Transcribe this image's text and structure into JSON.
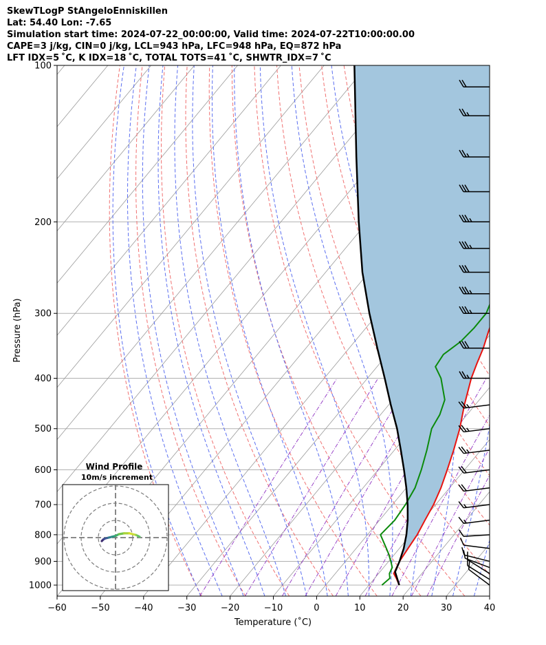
{
  "header": {
    "lines": [
      "SkewTLogP StAngeloEnniskillen",
      "Lat: 54.40   Lon: -7.65",
      "Simulation start time: 2024-07-22_00:00:00, Valid time: 2024-07-22T10:00:00.00",
      "CAPE=3 j/kg, CIN=0 j/kg, LCL=943 hPa, LFC=948 hPa, EQ=872 hPa",
      "LFT IDX=5 ˚C, K IDX=18 ˚C, TOTAL TOTS=41 ˚C, SHWTR_IDX=7 ˚C"
    ]
  },
  "chart_data": {
    "type": "line",
    "title": "SkewTLogP StAngeloEnniskillen",
    "xlabel": "Temperature (˚C)",
    "ylabel": "Pressure (hPa)",
    "xlim": [
      -60,
      40
    ],
    "ylim": [
      1050,
      100
    ],
    "y_scale": "log",
    "x_ticks": [
      -60,
      -50,
      -40,
      -30,
      -20,
      -10,
      0,
      10,
      20,
      30,
      40
    ],
    "x_tick_labels": [
      "−60",
      "−50",
      "−40",
      "−30",
      "−20",
      "−10",
      "0",
      "10",
      "20",
      "30",
      "40"
    ],
    "y_ticks": [
      1000,
      900,
      800,
      700,
      600,
      500,
      400,
      300,
      200,
      100
    ],
    "y_tick_labels": [
      "1000",
      "900",
      "800",
      "700",
      "600",
      "500",
      "400",
      "300",
      "200",
      "100"
    ],
    "grid": true,
    "cape_fill_color": "#a3c6de",
    "series": [
      {
        "role": "temperature",
        "color": "#e8130f",
        "points": [
          [
            1000,
            17
          ],
          [
            970,
            15
          ],
          [
            950,
            13.5
          ],
          [
            925,
            13
          ],
          [
            900,
            12.5
          ],
          [
            850,
            12
          ],
          [
            800,
            11.5
          ],
          [
            750,
            10.5
          ],
          [
            700,
            9.5
          ],
          [
            650,
            8
          ],
          [
            600,
            6
          ],
          [
            550,
            3.7
          ],
          [
            500,
            1
          ],
          [
            450,
            -2.5
          ],
          [
            400,
            -6
          ],
          [
            375,
            -7.5
          ],
          [
            350,
            -9
          ],
          [
            325,
            -11
          ],
          [
            300,
            -13
          ],
          [
            275,
            -15.5
          ],
          [
            260,
            -15.5
          ],
          [
            250,
            -15
          ],
          [
            240,
            -13.5
          ],
          [
            230,
            -11
          ],
          [
            220,
            -8
          ],
          [
            210,
            -5.5
          ],
          [
            200,
            -3
          ],
          [
            190,
            -0.5
          ],
          [
            180,
            2
          ],
          [
            170,
            4.5
          ],
          [
            160,
            7
          ],
          [
            150,
            8.5
          ],
          [
            140,
            10
          ],
          [
            130,
            11
          ],
          [
            120,
            12.5
          ],
          [
            110,
            13.5
          ],
          [
            100,
            15
          ]
        ]
      },
      {
        "role": "dewpoint",
        "color": "#0b8a0b",
        "points": [
          [
            1000,
            13
          ],
          [
            970,
            13.5
          ],
          [
            950,
            12.5
          ],
          [
            925,
            12
          ],
          [
            900,
            10.5
          ],
          [
            870,
            8.5
          ],
          [
            850,
            7
          ],
          [
            800,
            3
          ],
          [
            750,
            3.5
          ],
          [
            700,
            3
          ],
          [
            650,
            2
          ],
          [
            600,
            0
          ],
          [
            550,
            -2.5
          ],
          [
            500,
            -5.5
          ],
          [
            470,
            -6.3
          ],
          [
            440,
            -8
          ],
          [
            400,
            -13
          ],
          [
            380,
            -16.5
          ],
          [
            360,
            -17
          ],
          [
            340,
            -15.5
          ],
          [
            320,
            -15
          ],
          [
            300,
            -15
          ],
          [
            280,
            -16.5
          ],
          [
            260,
            -17.5
          ],
          [
            240,
            -19
          ],
          [
            220,
            -20
          ],
          [
            200,
            -22
          ],
          [
            190,
            -25
          ],
          [
            180,
            -29
          ],
          [
            170,
            -31
          ],
          [
            160,
            -29
          ],
          [
            150,
            -27
          ],
          [
            140,
            -26
          ],
          [
            130,
            -25
          ],
          [
            120,
            -24
          ],
          [
            110,
            -23
          ],
          [
            100,
            -22
          ]
        ]
      },
      {
        "role": "parcel",
        "color": "#000000",
        "points": [
          [
            1000,
            17
          ],
          [
            943,
            13.5
          ],
          [
            900,
            12.5
          ],
          [
            850,
            11
          ],
          [
            800,
            9
          ],
          [
            750,
            6.5
          ],
          [
            700,
            3.5
          ],
          [
            650,
            0
          ],
          [
            600,
            -4
          ],
          [
            550,
            -8.5
          ],
          [
            500,
            -13.5
          ],
          [
            450,
            -19.5
          ],
          [
            400,
            -26
          ],
          [
            350,
            -33.5
          ],
          [
            300,
            -42
          ],
          [
            250,
            -51.5
          ],
          [
            200,
            -62
          ],
          [
            150,
            -75
          ],
          [
            100,
            -93
          ]
        ]
      }
    ],
    "wind_barbs": [
      {
        "p": 1000,
        "u": 8,
        "v": -6,
        "kt": 10
      },
      {
        "p": 975,
        "u": 8,
        "v": -5,
        "kt": 10
      },
      {
        "p": 950,
        "u": 8,
        "v": -5,
        "kt": 10
      },
      {
        "p": 925,
        "u": 8,
        "v": -3,
        "kt": 10
      },
      {
        "p": 900,
        "u": 8,
        "v": -2,
        "kt": 10
      },
      {
        "p": 850,
        "u": 8,
        "v": -1,
        "kt": 10
      },
      {
        "p": 800,
        "u": 8,
        "v": 0.5,
        "kt": 10
      },
      {
        "p": 750,
        "u": 8,
        "v": 1,
        "kt": 15
      },
      {
        "p": 700,
        "u": 8,
        "v": 1,
        "kt": 15
      },
      {
        "p": 650,
        "u": 8,
        "v": 1,
        "kt": 20
      },
      {
        "p": 600,
        "u": 8,
        "v": 1,
        "kt": 20
      },
      {
        "p": 550,
        "u": 8,
        "v": 1,
        "kt": 25
      },
      {
        "p": 500,
        "u": 8,
        "v": 1,
        "kt": 25
      },
      {
        "p": 450,
        "u": 8,
        "v": 1,
        "kt": 25
      },
      {
        "p": 400,
        "u": 8,
        "v": 0,
        "kt": 25
      },
      {
        "p": 350,
        "u": 8,
        "v": 0,
        "kt": 30
      },
      {
        "p": 300,
        "u": 8,
        "v": 0,
        "kt": 35
      },
      {
        "p": 275,
        "u": 8,
        "v": 0,
        "kt": 35
      },
      {
        "p": 250,
        "u": 8,
        "v": 0,
        "kt": 30
      },
      {
        "p": 225,
        "u": 8,
        "v": 0,
        "kt": 35
      },
      {
        "p": 200,
        "u": 8,
        "v": 0,
        "kt": 35
      },
      {
        "p": 175,
        "u": 8,
        "v": 0,
        "kt": 30
      },
      {
        "p": 150,
        "u": 8,
        "v": 0,
        "kt": 25
      },
      {
        "p": 125,
        "u": 8,
        "v": 0,
        "kt": 25
      },
      {
        "p": 110,
        "u": 8,
        "v": 0,
        "kt": 20
      }
    ],
    "hodograph": {
      "title": "Wind Profile",
      "subtitle": "10m/s increment",
      "rings": [
        10,
        20,
        30
      ],
      "points": [
        [
          -8,
          -2
        ],
        [
          -7,
          -1
        ],
        [
          -6,
          -0.5
        ],
        [
          -4,
          0
        ],
        [
          -2,
          0.5
        ],
        [
          0,
          1
        ],
        [
          2,
          2
        ],
        [
          5,
          2.5
        ],
        [
          8,
          2.5
        ],
        [
          10,
          2
        ],
        [
          12,
          1.5
        ],
        [
          13,
          1
        ],
        [
          14,
          0.5
        ]
      ]
    }
  }
}
